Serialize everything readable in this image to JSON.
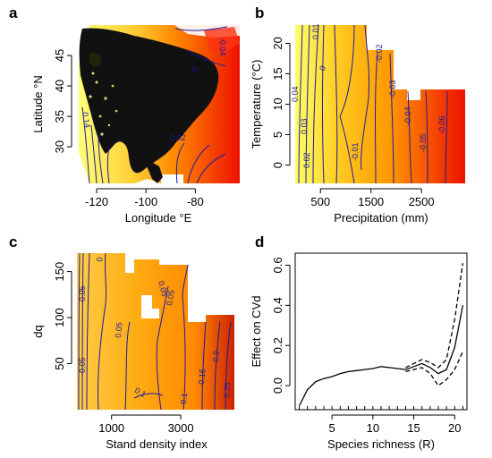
{
  "chart_data": [
    {
      "panel": "a",
      "type": "heatmap",
      "xlabel": "Longitude °E",
      "ylabel": "Latitude °N",
      "xticks": [
        -120,
        -100,
        -80
      ],
      "yticks": [
        30,
        35,
        40,
        45
      ],
      "xlim": [
        -128,
        -62
      ],
      "ylim": [
        24,
        50
      ],
      "contour_labels": [
        "0",
        "-0.04",
        "0.02",
        "0.14"
      ],
      "colors": {
        "low": "#ffff66",
        "mid": "#ff9900",
        "high": "#ee1100",
        "contour": "#1a1aa0"
      }
    },
    {
      "panel": "b",
      "type": "heatmap",
      "xlabel": "Precipitation (mm)",
      "ylabel": "Temperature (°C)",
      "xticks": [
        500,
        1500,
        2500
      ],
      "yticks": [
        0,
        5,
        10,
        15,
        20
      ],
      "xlim": [
        0,
        3400
      ],
      "ylim": [
        -3,
        23
      ],
      "contour_labels": [
        "0.04",
        "0.03",
        "0.02",
        "0.01",
        "0",
        "-0.01",
        "-0.02",
        "-0.03",
        "-0.04",
        "-0.05",
        "-0.06"
      ],
      "colors": {
        "low": "#ffff66",
        "mid": "#ff9900",
        "high": "#ee1100",
        "contour": "#1a1aa0"
      }
    },
    {
      "panel": "c",
      "type": "heatmap",
      "xlabel": "Stand density index",
      "ylabel": "dq",
      "xticks": [
        1000,
        3000
      ],
      "yticks": [
        50,
        100,
        150
      ],
      "xlim": [
        0,
        4600
      ],
      "ylim": [
        0,
        170
      ],
      "contour_labels": [
        "0",
        "0.05",
        "0.05",
        "0.05",
        "0.1",
        "0.1",
        "0.15",
        "0.2",
        "0.25",
        "-0.05",
        "-0.05"
      ],
      "colors": {
        "low": "#ffcc33",
        "mid": "#ffa000",
        "high": "#dd2200",
        "contour": "#1a1aa0"
      }
    },
    {
      "panel": "d",
      "type": "line",
      "xlabel": "Species richness (R)",
      "ylabel": "Effect on CVd",
      "xticks": [
        5,
        10,
        15,
        20
      ],
      "yticks": [
        0.0,
        0.2,
        0.4,
        0.6
      ],
      "xlim": [
        0.5,
        21.5
      ],
      "ylim": [
        -0.12,
        0.66
      ],
      "series": [
        {
          "style": "solid",
          "x": [
            1,
            2,
            3,
            4,
            5,
            6,
            7,
            8,
            9,
            10,
            11,
            12,
            13,
            14,
            15,
            16,
            17,
            18,
            19,
            20,
            21
          ],
          "y": [
            -0.1,
            -0.02,
            0.02,
            0.035,
            0.045,
            0.06,
            0.07,
            0.075,
            0.08,
            0.085,
            0.095,
            0.09,
            0.085,
            0.08,
            0.095,
            0.11,
            0.09,
            0.06,
            0.08,
            0.19,
            0.4
          ]
        },
        {
          "style": "dashed",
          "x": [
            14,
            15,
            16,
            17,
            18,
            19,
            20,
            21
          ],
          "y": [
            0.09,
            0.11,
            0.13,
            0.115,
            0.09,
            0.13,
            0.33,
            0.61
          ]
        },
        {
          "style": "dashed",
          "x": [
            14,
            15,
            16,
            17,
            18,
            19,
            20,
            21
          ],
          "y": [
            0.07,
            0.08,
            0.09,
            0.06,
            0.0,
            0.03,
            0.08,
            0.17
          ]
        }
      ],
      "rug_x": [
        1,
        2,
        3,
        4,
        5,
        6,
        7,
        8,
        9,
        10,
        11,
        12,
        13,
        14,
        15,
        16,
        17,
        18,
        19,
        20,
        21
      ]
    }
  ]
}
